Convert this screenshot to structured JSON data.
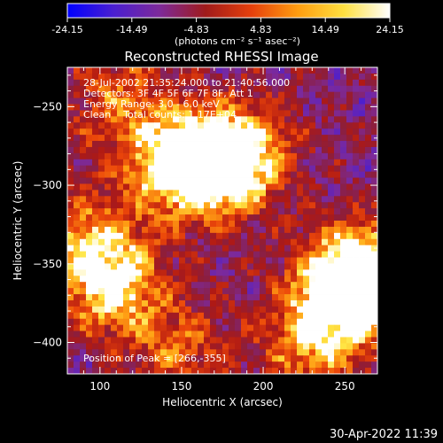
{
  "colorbar": {
    "ticks": [
      "-24.15",
      "-14.49",
      "-4.83",
      "4.83",
      "14.49",
      "24.15"
    ],
    "units": "(photons cm⁻² s⁻¹ asec⁻²)",
    "gradient_colors": [
      "#0000ff",
      "#4a1fd0",
      "#7d2a9a",
      "#a01b1b",
      "#e6400c",
      "#ff9d10",
      "#ffe040",
      "#ffffff"
    ]
  },
  "chart_data": {
    "type": "heatmap",
    "title": "Reconstructed RHESSI Image",
    "xlabel": "Heliocentric X (arcsec)",
    "ylabel": "Heliocentric Y (arcsec)",
    "xlim": [
      80,
      270
    ],
    "ylim": [
      -420,
      -225
    ],
    "xticks": [
      100,
      150,
      200,
      250
    ],
    "yticks": [
      -250,
      -300,
      -350,
      -400
    ],
    "zlim": [
      -24.15,
      24.15
    ],
    "colormap": "blue-purple-red-orange-yellow-white",
    "info_lines": [
      "28-Jul-2002 21:35:24.000 to 21:40:56.000",
      "Detectors: 3F 4F 5F 6F 7F 8F, Att 1",
      "Energy Range: 3.0 - 6.0 keV",
      "Clean    Total counts: 1.17E+04"
    ],
    "peak_label": "Position of Peak = [266,-355]",
    "peak": [
      266,
      -355
    ],
    "sources": [
      {
        "x": 170,
        "y": -290,
        "peak": 23
      },
      {
        "x": 145,
        "y": -285,
        "peak": 22
      },
      {
        "x": 188,
        "y": -278,
        "peak": 16
      },
      {
        "x": 108,
        "y": -365,
        "peak": 21
      },
      {
        "x": 95,
        "y": -335,
        "peak": 14
      },
      {
        "x": 248,
        "y": -365,
        "peak": 24
      },
      {
        "x": 266,
        "y": -355,
        "peak": 24
      },
      {
        "x": 232,
        "y": -400,
        "peak": 17
      },
      {
        "x": 150,
        "y": -405,
        "peak": 9
      },
      {
        "x": 110,
        "y": -245,
        "peak": 10
      }
    ]
  },
  "footer": {
    "timestamp": "30-Apr-2022 11:39"
  }
}
